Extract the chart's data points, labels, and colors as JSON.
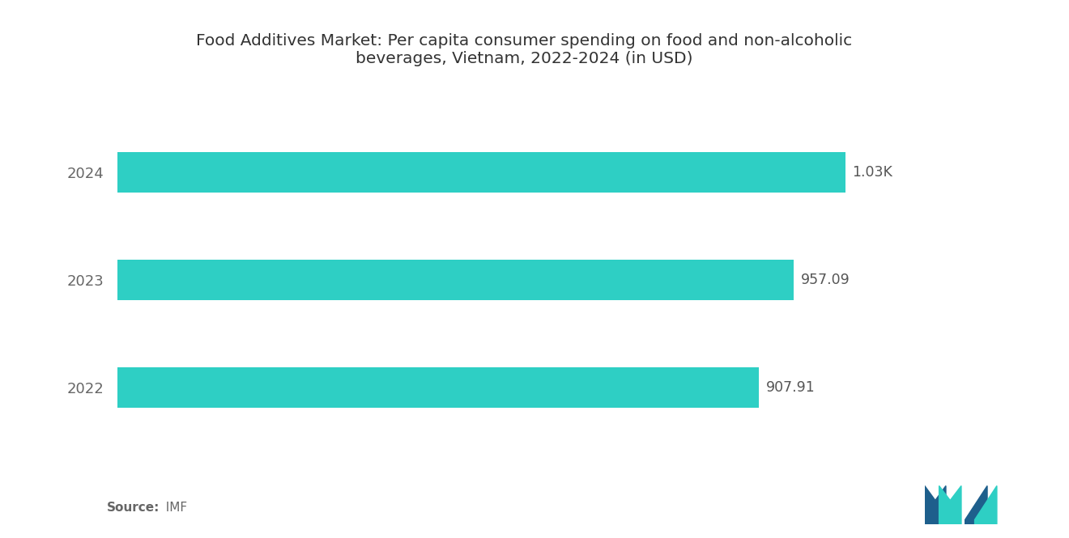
{
  "title": "Food Additives Market: Per capita consumer spending on food and non-alcoholic\nbeverages, Vietnam, 2022-2024 (in USD)",
  "categories": [
    "2022",
    "2023",
    "2024"
  ],
  "values": [
    907.91,
    957.09,
    1030.0
  ],
  "labels": [
    "907.91",
    "957.09",
    "1.03K"
  ],
  "bar_color": "#2ECFC4",
  "background_color": "#ffffff",
  "source_label": "Source:",
  "source_value": "  IMF",
  "title_fontsize": 14.5,
  "label_fontsize": 12.5,
  "ytick_fontsize": 13,
  "source_fontsize": 11,
  "xlim": [
    0,
    1150
  ],
  "bar_height": 0.38
}
